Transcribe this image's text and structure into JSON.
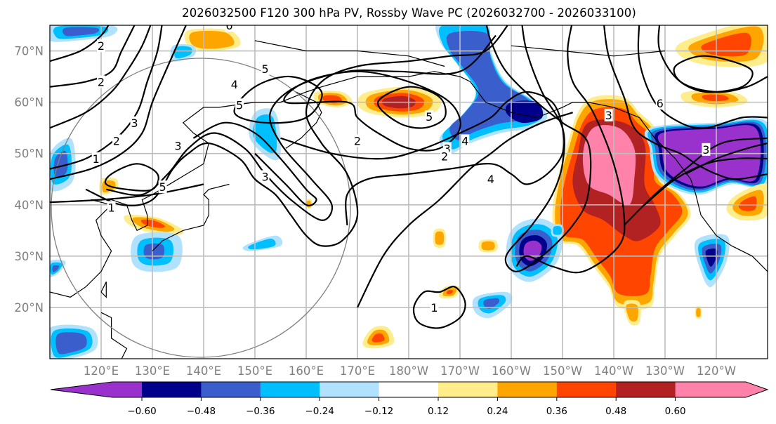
{
  "title": "2026032500 F120 300 hPa PV, Rossby Wave PC (2026032700 - 2026033100)",
  "chart_data": {
    "type": "heatmap",
    "title": "2026032500 F120 300 hPa PV, Rossby Wave PC (2026032700 - 2026033100)",
    "map_projection": "lat-lon (Pacific-centred)",
    "lon_range_deg_east": [
      110,
      250
    ],
    "lat_range_deg": [
      10,
      75
    ],
    "grid": true,
    "x_ticks": [
      "120°E",
      "130°E",
      "140°E",
      "150°E",
      "160°E",
      "170°E",
      "180°W",
      "170°W",
      "160°W",
      "150°W",
      "140°W",
      "130°W",
      "120°W"
    ],
    "x_tick_values": [
      120,
      130,
      140,
      150,
      160,
      170,
      180,
      190,
      200,
      210,
      220,
      230,
      240
    ],
    "y_ticks": [
      "70°N",
      "60°N",
      "50°N",
      "40°N",
      "30°N",
      "20°N"
    ],
    "y_tick_values": [
      70,
      60,
      50,
      40,
      30,
      20
    ],
    "filled_field": {
      "name": "Rossby Wave PC",
      "levels": [
        -0.6,
        -0.48,
        -0.36,
        -0.24,
        -0.12,
        0.12,
        0.24,
        0.36,
        0.48,
        0.6
      ],
      "level_labels": [
        "−0.60",
        "−0.48",
        "−0.36",
        "−0.24",
        "−0.12",
        "0.12",
        "0.24",
        "0.36",
        "0.48",
        "0.60"
      ],
      "colors": [
        "#9932cc",
        "#00008b",
        "#3a5fcd",
        "#00bfff",
        "#b0e2ff",
        "#ffffff",
        "#ffec8b",
        "#ffa500",
        "#ff4500",
        "#b22222",
        "#ff82ab"
      ],
      "extend": "both",
      "colorbar_location": "bottom"
    },
    "contour_field": {
      "name": "300 hPa PV (PVU)",
      "levels": [
        1,
        2,
        3,
        4,
        5,
        6
      ],
      "labels_shown": [
        "2",
        "2",
        "1",
        "2",
        "3",
        "5",
        "3",
        "1",
        "6",
        "5",
        "4",
        "3",
        "5",
        "2",
        "3",
        "4",
        "2",
        "5",
        "4",
        "6",
        "3",
        "3",
        "1"
      ]
    },
    "features": [
      {
        "kind": "positive anomaly",
        "value_max": ">0.60",
        "region": "Gulf of Alaska / NE Pacific 140°W–150°W, 20°N–55°N"
      },
      {
        "kind": "negative anomaly",
        "value_min": "<-0.60",
        "region": "Western Canada / Pacific NW 130°W–115°W, 45°N–57°N"
      },
      {
        "kind": "negative anomaly",
        "value_min": "<-0.60",
        "region": "Subtropical Pacific ~155°W, 30°N"
      },
      {
        "kind": "negative anomaly",
        "value_min": "-0.48",
        "region": "Bering Sea / Alaska 170°W–150°W, 50°N–75°N"
      },
      {
        "kind": "positive anomaly",
        "value_max": "0.48",
        "region": "Bering Sea ~175°W, 60°N"
      },
      {
        "kind": "positive anomaly",
        "value_max": "0.36",
        "region": "Korea / Japan 125°E–135°E, 36°N"
      }
    ],
    "range_ring": "great-circle ring centred ~140°E, 40°N"
  }
}
